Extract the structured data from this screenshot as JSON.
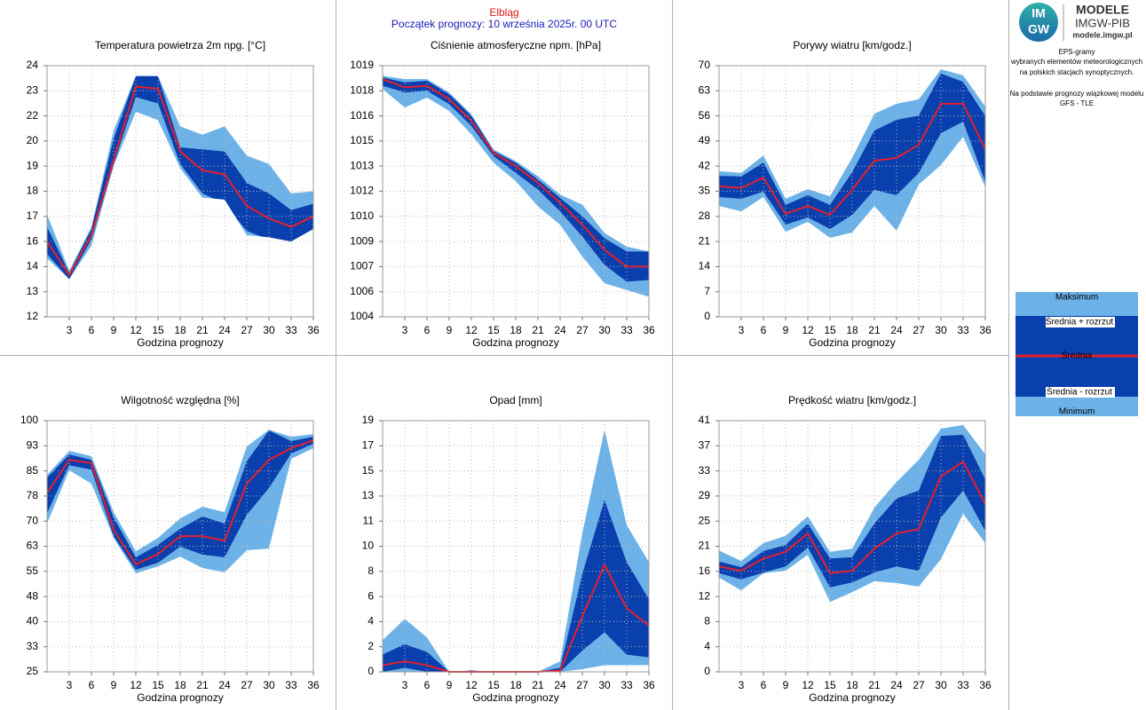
{
  "header": {
    "station": "Elbląg",
    "forecast_start": "Początek prognozy: 10 września 2025r. 00 UTC"
  },
  "logo": {
    "mark_top": "IM",
    "mark_bottom": "GW",
    "title": "MODELE",
    "org": "IMGW-PIB",
    "url": "modele.imgw.pl"
  },
  "description": [
    "EPS-gramy",
    "wybranych elementów meteorologicznych",
    "na polskich stacjach  synoptycznych.",
    "Na podstawie prognozy wiązkowej modelu",
    "GFS - TLE"
  ],
  "legend": [
    "Maksimum",
    "Średnia + rozrzut",
    "Średnia",
    "Średnia - rozrzut",
    "Minimum"
  ],
  "chart_data": [
    {
      "type": "area",
      "title": "Temperatura powietrza 2m npg. [°C]",
      "xlabel": "Godzina prognozy",
      "x": [
        0,
        3,
        6,
        9,
        12,
        15,
        18,
        21,
        24,
        27,
        30,
        33,
        36
      ],
      "xlim": [
        0,
        36
      ],
      "xticks": [
        3,
        6,
        9,
        12,
        15,
        18,
        21,
        24,
        27,
        30,
        33,
        36
      ],
      "ylim": [
        12,
        24
      ],
      "yticks": [
        12,
        {
          "value": 13.2,
          "label": "13"
        },
        {
          "value": 14.4,
          "label": "14"
        },
        {
          "value": 15.6,
          "label": "16"
        },
        {
          "value": 16.8,
          "label": "17"
        },
        18,
        {
          "value": 19.2,
          "label": "19"
        },
        {
          "value": 20.4,
          "label": "20"
        },
        {
          "value": 21.6,
          "label": "22"
        },
        {
          "value": 22.8,
          "label": "23"
        },
        24
      ],
      "grid": true,
      "series": [
        {
          "color": "#6cb2e8",
          "values": [
            16.9,
            14.2,
            16.3,
            20.9,
            23.5,
            23.5,
            21.1,
            20.7,
            21.1,
            19.7,
            19.3,
            17.9,
            18.0
          ]
        },
        {
          "color": "#0a3fae",
          "values": [
            16.3,
            14.1,
            16.2,
            20.5,
            23.5,
            23.5,
            20.1,
            20.0,
            19.9,
            18.4,
            17.9,
            17.1,
            17.4
          ]
        },
        {
          "color": "#e3202b",
          "values": [
            15.6,
            14.0,
            15.9,
            19.5,
            23.0,
            22.9,
            19.9,
            19.0,
            18.8,
            17.3,
            16.7,
            16.3,
            16.8
          ]
        },
        {
          "color": "#6cb2e8",
          "values": [
            15.0,
            13.8,
            15.7,
            19.3,
            22.5,
            22.2,
            19.3,
            17.9,
            17.4,
            16.1,
            15.7,
            15.6,
            16.2
          ]
        },
        {
          "values": [
            14.8,
            13.8,
            15.4,
            19.2,
            21.8,
            21.4,
            19.1,
            17.7,
            17.6,
            15.9,
            15.8,
            15.6,
            16.2
          ]
        }
      ]
    },
    {
      "type": "area",
      "title": "Ciśnienie atmosferyczne npm. [hPa]",
      "xlabel": "Godzina prognozy",
      "x": [
        0,
        3,
        6,
        9,
        12,
        15,
        18,
        21,
        24,
        27,
        30,
        33,
        36
      ],
      "xlim": [
        0,
        36
      ],
      "xticks": [
        3,
        6,
        9,
        12,
        15,
        18,
        21,
        24,
        27,
        30,
        33,
        36
      ],
      "ylim": [
        1004,
        1019
      ],
      "yticks": [
        1004,
        {
          "value": 1005.5,
          "label": "1006"
        },
        1007,
        {
          "value": 1008.5,
          "label": "1009"
        },
        1010,
        {
          "value": 1011.5,
          "label": "1012"
        },
        1013,
        {
          "value": 1014.5,
          "label": "1015"
        },
        1016,
        {
          "value": 1017.5,
          "label": "1018"
        },
        1019
      ],
      "grid": true,
      "series": [
        {
          "color": "#6cb2e8",
          "values": [
            1018.4,
            1018.2,
            1018.2,
            1017.4,
            1016.1,
            1014.0,
            1013.3,
            1012.4,
            1011.3,
            1010.7,
            1009.0,
            1008.2,
            1007.9
          ]
        },
        {
          "color": "#0a3fae",
          "values": [
            1018.3,
            1018.0,
            1018.1,
            1017.3,
            1016.0,
            1013.9,
            1013.2,
            1012.2,
            1011.1,
            1010.0,
            1008.7,
            1007.9,
            1007.9
          ]
        },
        {
          "color": "#e3202b",
          "values": [
            1018.2,
            1017.7,
            1017.8,
            1017.0,
            1015.7,
            1013.8,
            1013.0,
            1012.0,
            1010.8,
            1009.5,
            1008.0,
            1007.0,
            1007.0
          ]
        },
        {
          "color": "#6cb2e8",
          "values": [
            1017.8,
            1017.4,
            1017.5,
            1016.7,
            1015.4,
            1013.6,
            1012.6,
            1011.6,
            1010.3,
            1008.8,
            1007.1,
            1006.1,
            1006.2
          ]
        },
        {
          "values": [
            1017.6,
            1016.5,
            1017.1,
            1016.3,
            1014.9,
            1013.2,
            1012.1,
            1010.6,
            1009.5,
            1007.6,
            1006.0,
            1005.6,
            1005.2
          ]
        }
      ]
    },
    {
      "type": "area",
      "title": "Porywy wiatru [km/godz.]",
      "xlabel": "Godzina prognozy",
      "x": [
        0,
        3,
        6,
        9,
        12,
        15,
        18,
        21,
        24,
        27,
        30,
        33,
        36
      ],
      "xlim": [
        0,
        36
      ],
      "xticks": [
        3,
        6,
        9,
        12,
        15,
        18,
        21,
        24,
        27,
        30,
        33,
        36
      ],
      "ylim": [
        0,
        70
      ],
      "yticks": [
        0,
        7,
        14,
        21,
        28,
        35,
        42,
        49,
        56,
        63,
        70
      ],
      "grid": true,
      "series": [
        {
          "color": "#6cb2e8",
          "values": [
            40.6,
            40.1,
            45.0,
            32.9,
            35.6,
            33.6,
            44.3,
            56.6,
            59.4,
            60.6,
            69.0,
            67.3,
            58.6
          ]
        },
        {
          "color": "#0a3fae",
          "values": [
            39.3,
            39.1,
            43.0,
            31.2,
            33.9,
            31.2,
            40.3,
            51.9,
            54.9,
            56.1,
            67.8,
            65.5,
            55.9
          ]
        },
        {
          "color": "#e3202b",
          "values": [
            36.4,
            35.9,
            38.8,
            28.7,
            30.9,
            28.4,
            35.4,
            43.5,
            44.3,
            48.0,
            59.4,
            59.4,
            46.7
          ]
        },
        {
          "color": "#6cb2e8",
          "values": [
            33.4,
            32.9,
            34.9,
            25.7,
            27.7,
            24.5,
            28.4,
            35.4,
            33.9,
            40.1,
            51.2,
            54.4,
            37.6
          ]
        },
        {
          "values": [
            30.9,
            29.4,
            33.4,
            23.7,
            26.5,
            22.0,
            23.5,
            30.9,
            24.0,
            36.9,
            42.3,
            50.2,
            36.1
          ]
        }
      ]
    },
    {
      "type": "area",
      "title": "Wilgotność względna [%]",
      "xlabel": "Godzina prognozy",
      "x": [
        0,
        3,
        6,
        9,
        12,
        15,
        18,
        21,
        24,
        27,
        30,
        33,
        36
      ],
      "xlim": [
        0,
        36
      ],
      "xticks": [
        3,
        6,
        9,
        12,
        15,
        18,
        21,
        24,
        27,
        30,
        33,
        36
      ],
      "ylim": [
        25,
        100
      ],
      "yticks": [
        25,
        {
          "value": 32.5,
          "label": "33"
        },
        40,
        {
          "value": 47.5,
          "label": "48"
        },
        55,
        {
          "value": 62.5,
          "label": "63"
        },
        70,
        {
          "value": 77.5,
          "label": "78"
        },
        85,
        {
          "value": 92.5,
          "label": "93"
        },
        100
      ],
      "grid": true,
      "series": [
        {
          "color": "#6cb2e8",
          "values": [
            83.8,
            91.0,
            89.4,
            72.7,
            61.0,
            65.0,
            70.8,
            74.3,
            72.7,
            92.3,
            97.3,
            95.2,
            96.0
          ]
        },
        {
          "color": "#0a3fae",
          "values": [
            83.0,
            89.9,
            88.3,
            71.1,
            59.2,
            62.9,
            67.7,
            71.4,
            69.3,
            87.8,
            97.1,
            93.9,
            95.2
          ]
        },
        {
          "color": "#e3202b",
          "values": [
            78.5,
            88.3,
            87.3,
            67.4,
            57.1,
            60.2,
            65.5,
            65.5,
            64.2,
            81.2,
            88.3,
            91.8,
            94.2
          ]
        },
        {
          "color": "#6cb2e8",
          "values": [
            72.4,
            86.7,
            85.4,
            65.5,
            55.5,
            57.6,
            62.4,
            60.0,
            59.2,
            71.9,
            79.9,
            90.2,
            93.1
          ]
        },
        {
          "values": [
            69.3,
            85.2,
            81.2,
            65.0,
            54.4,
            56.5,
            59.4,
            56.0,
            54.7,
            61.3,
            61.8,
            88.6,
            91.8
          ]
        }
      ]
    },
    {
      "type": "area",
      "title": "Opad [mm]",
      "xlabel": "Godzina prognozy",
      "x": [
        0,
        3,
        6,
        9,
        12,
        15,
        18,
        21,
        24,
        27,
        30,
        33,
        36
      ],
      "xlim": [
        0,
        36
      ],
      "xticks": [
        3,
        6,
        9,
        12,
        15,
        18,
        21,
        24,
        27,
        30,
        33,
        36
      ],
      "ylim": [
        0,
        19
      ],
      "yticks": [
        0,
        {
          "value": 1.9,
          "label": "2"
        },
        {
          "value": 3.8,
          "label": "4"
        },
        {
          "value": 5.7,
          "label": "6"
        },
        {
          "value": 7.6,
          "label": "8"
        },
        {
          "value": 9.5,
          "label": "10"
        },
        {
          "value": 11.4,
          "label": "11"
        },
        {
          "value": 13.3,
          "label": "13"
        },
        {
          "value": 15.2,
          "label": "15"
        },
        {
          "value": 17.1,
          "label": "17"
        },
        19
      ],
      "grid": true,
      "series": [
        {
          "color": "#6cb2e8",
          "values": [
            2.4,
            4.0,
            2.6,
            0,
            0.1,
            0,
            0,
            0,
            0.8,
            10.5,
            18.3,
            11.1,
            8.3
          ]
        },
        {
          "color": "#0a3fae",
          "values": [
            1.3,
            2.1,
            1.5,
            0,
            0.1,
            0,
            0,
            0,
            0.3,
            7.4,
            13.0,
            8.3,
            5.5
          ]
        },
        {
          "color": "#e3202b",
          "values": [
            0.5,
            0.8,
            0.5,
            0,
            0,
            0,
            0,
            0,
            0.1,
            4.2,
            8.1,
            4.8,
            3.5
          ]
        },
        {
          "color": "#6cb2e8",
          "values": [
            0,
            0.3,
            0,
            0,
            0,
            0,
            0,
            0,
            0,
            1.6,
            3.0,
            1.3,
            1.1
          ]
        },
        {
          "values": [
            0,
            0,
            0,
            0,
            0,
            0,
            0,
            0,
            0,
            0.2,
            0.5,
            0.5,
            0.5
          ]
        }
      ]
    },
    {
      "type": "area",
      "title": "Prędkość wiatru [km/godz.]",
      "xlabel": "Godzina prognozy",
      "x": [
        0,
        3,
        6,
        9,
        12,
        15,
        18,
        21,
        24,
        27,
        30,
        33,
        36
      ],
      "xlim": [
        0,
        36
      ],
      "xticks": [
        3,
        6,
        9,
        12,
        15,
        18,
        21,
        24,
        27,
        30,
        33,
        36
      ],
      "ylim": [
        0,
        41
      ],
      "yticks": [
        0,
        {
          "value": 4.1,
          "label": "4"
        },
        {
          "value": 8.2,
          "label": "8"
        },
        {
          "value": 12.3,
          "label": "12"
        },
        {
          "value": 16.4,
          "label": "16"
        },
        {
          "value": 20.5,
          "label": "21"
        },
        {
          "value": 24.6,
          "label": "25"
        },
        {
          "value": 28.7,
          "label": "29"
        },
        {
          "value": 32.8,
          "label": "33"
        },
        {
          "value": 36.9,
          "label": "37"
        },
        41
      ],
      "grid": true,
      "series": [
        {
          "color": "#6cb2e8",
          "values": [
            19.8,
            18.1,
            21.0,
            22.2,
            25.4,
            19.6,
            20.1,
            26.8,
            31.0,
            34.6,
            39.7,
            40.3,
            35.5
          ]
        },
        {
          "color": "#0a3fae",
          "values": [
            18.0,
            17.1,
            19.7,
            20.7,
            24.2,
            18.5,
            18.7,
            24.2,
            28.3,
            29.6,
            38.5,
            38.7,
            31.4
          ]
        },
        {
          "color": "#e3202b",
          "values": [
            17.2,
            16.5,
            18.5,
            19.6,
            22.6,
            16.1,
            16.5,
            20.1,
            22.6,
            23.3,
            31.9,
            34.3,
            27.4
          ]
        },
        {
          "color": "#6cb2e8",
          "values": [
            16.1,
            15.1,
            16.2,
            17.2,
            20.3,
            13.8,
            14.6,
            16.2,
            17.2,
            16.5,
            25.2,
            29.6,
            23.0
          ]
        },
        {
          "values": [
            15.4,
            13.3,
            16.1,
            16.5,
            19.1,
            11.4,
            13.0,
            14.8,
            14.5,
            13.9,
            18.4,
            25.8,
            21.0
          ]
        }
      ]
    }
  ]
}
